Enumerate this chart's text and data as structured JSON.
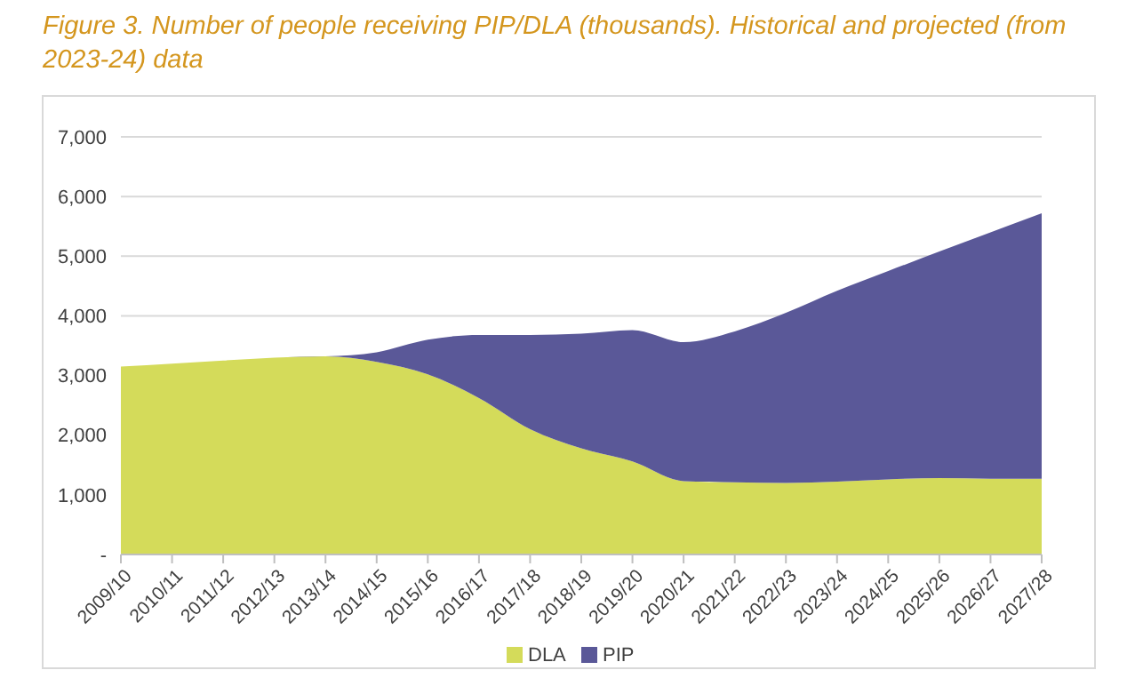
{
  "chart_data": {
    "type": "area",
    "stacked": true,
    "title": "Figure 3. Number of people receiving PIP/DLA (thousands). Historical and projected (from 2023-24) data",
    "categories": [
      "2009/10",
      "2010/11",
      "2011/12",
      "2012/13",
      "2013/14",
      "2014/15",
      "2015/16",
      "2016/17",
      "2017/18",
      "2018/19",
      "2019/20",
      "2020/21",
      "2021/22",
      "2022/23",
      "2023/24",
      "2024/25",
      "2025/26",
      "2026/27",
      "2027/28"
    ],
    "series": [
      {
        "name": "DLA",
        "color": "#d4db5a",
        "values": [
          3150,
          3200,
          3250,
          3300,
          3320,
          3230,
          3020,
          2620,
          2100,
          1780,
          1560,
          1230,
          1210,
          1200,
          1220,
          1260,
          1280,
          1270,
          1270
        ]
      },
      {
        "name": "PIP",
        "color": "#5a5898",
        "values": [
          0,
          0,
          0,
          0,
          0,
          160,
          580,
          1060,
          1580,
          1920,
          2200,
          2330,
          2530,
          2850,
          3200,
          3490,
          3800,
          4130,
          4450
        ]
      }
    ],
    "ylim": [
      0,
      7000
    ],
    "yticks": [
      {
        "value": 0,
        "label": "-"
      },
      {
        "value": 1000,
        "label": "1,000"
      },
      {
        "value": 2000,
        "label": "2,000"
      },
      {
        "value": 3000,
        "label": "3,000"
      },
      {
        "value": 4000,
        "label": "4,000"
      },
      {
        "value": 5000,
        "label": "5,000"
      },
      {
        "value": 6000,
        "label": "6,000"
      },
      {
        "value": 7000,
        "label": "7,000"
      }
    ],
    "grid": "y",
    "legend": "bottom"
  }
}
